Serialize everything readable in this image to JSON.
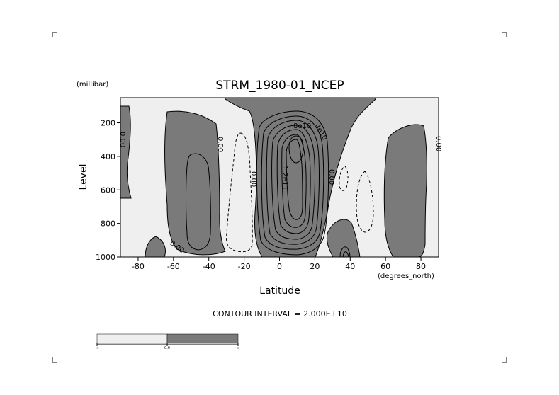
{
  "chart_data": {
    "type": "contour",
    "title": "STRM_1980-01_NCEP",
    "xlabel": "Latitude",
    "ylabel": "Level",
    "x_units": "(degrees_north)",
    "y_units": "(millibar)",
    "xlim": [
      -90,
      90
    ],
    "ylim": [
      1000,
      50
    ],
    "y_reversed": true,
    "x_ticks": [
      -80,
      -60,
      -40,
      -20,
      0,
      20,
      40,
      60,
      80
    ],
    "y_ticks": [
      200,
      400,
      600,
      800,
      1000
    ],
    "contour_interval_text": "CONTOUR INTERVAL = 2.000E+10",
    "contour_interval": 20000000000,
    "contour_labels": [
      "0.00",
      "0.00",
      "0.00",
      "0.00",
      "0.00",
      "0.00",
      "8e10",
      "4e10",
      "1.2e11"
    ],
    "shading": {
      "below_zero_color": "#efefef",
      "above_zero_color": "#7a7a7a"
    },
    "colorbar": {
      "labels": [
        "-∞",
        "0.0",
        "∞"
      ],
      "colors": [
        "#efefef",
        "#7a7a7a"
      ]
    }
  }
}
